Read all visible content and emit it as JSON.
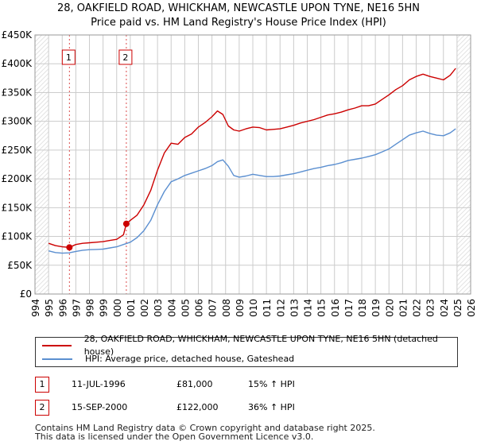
{
  "chart_data": {
    "type": "line",
    "title": "28, OAKFIELD ROAD, WHICKHAM, NEWCASTLE UPON TYNE, NE16 5HN",
    "subtitle": "Price paid vs. HM Land Registry's House Price Index (HPI)",
    "xlim": [
      1994,
      2026
    ],
    "ylim": [
      0,
      450000
    ],
    "yticks": [
      0,
      50000,
      100000,
      150000,
      200000,
      250000,
      300000,
      350000,
      400000,
      450000
    ],
    "ytick_labels": [
      "£0",
      "£50K",
      "£100K",
      "£150K",
      "£200K",
      "£250K",
      "£300K",
      "£350K",
      "£400K",
      "£450K"
    ],
    "xticks": [
      "1994",
      "1995",
      "1996",
      "1997",
      "1998",
      "1999",
      "2000",
      "2001",
      "2002",
      "2003",
      "2004",
      "2005",
      "2006",
      "2007",
      "2008",
      "2009",
      "2010",
      "2011",
      "2012",
      "2013",
      "2014",
      "2015",
      "2016",
      "2017",
      "2018",
      "2019",
      "2020",
      "2021",
      "2022",
      "2023",
      "2024",
      "2025",
      "2026"
    ],
    "grid": true,
    "hatch_before": 1995.0,
    "hatch_after": 2025.0,
    "series": [
      {
        "name": "28, OAKFIELD ROAD, WHICKHAM, NEWCASTLE UPON TYNE, NE16 5HN (detached house)",
        "color": "#cc0000",
        "x": [
          1995.0,
          1995.5,
          1996.0,
          1996.53,
          1997.0,
          1997.5,
          1998.0,
          1998.5,
          1999.0,
          1999.5,
          2000.0,
          2000.5,
          2000.71,
          2001.0,
          2001.5,
          2002.0,
          2002.5,
          2003.0,
          2003.5,
          2004.0,
          2004.5,
          2005.0,
          2005.5,
          2006.0,
          2006.5,
          2007.0,
          2007.4,
          2007.8,
          2008.2,
          2008.6,
          2009.0,
          2009.5,
          2010.0,
          2010.5,
          2011.0,
          2011.5,
          2012.0,
          2012.5,
          2013.0,
          2013.5,
          2014.0,
          2014.5,
          2015.0,
          2015.5,
          2016.0,
          2016.5,
          2017.0,
          2017.5,
          2018.0,
          2018.5,
          2019.0,
          2019.5,
          2020.0,
          2020.5,
          2021.0,
          2021.5,
          2022.0,
          2022.5,
          2023.0,
          2023.5,
          2024.0,
          2024.5,
          2024.9
        ],
        "y": [
          88000,
          84000,
          82000,
          81000,
          86000,
          88000,
          89000,
          90000,
          91000,
          93000,
          95000,
          103000,
          122000,
          128000,
          137000,
          155000,
          180000,
          215000,
          245000,
          262000,
          260000,
          272000,
          278000,
          290000,
          298000,
          308000,
          318000,
          312000,
          292000,
          285000,
          283000,
          287000,
          290000,
          289000,
          285000,
          286000,
          287000,
          290000,
          293000,
          297000,
          300000,
          303000,
          307000,
          311000,
          313000,
          316000,
          320000,
          323000,
          327000,
          327000,
          330000,
          338000,
          346000,
          355000,
          362000,
          372000,
          378000,
          382000,
          378000,
          375000,
          372000,
          380000,
          392000
        ]
      },
      {
        "name": "HPI: Average price, detached house, Gateshead",
        "color": "#5b8fd0",
        "x": [
          1995.0,
          1995.5,
          1996.0,
          1996.5,
          1997.0,
          1997.5,
          1998.0,
          1998.5,
          1999.0,
          1999.5,
          2000.0,
          2000.5,
          2001.0,
          2001.5,
          2002.0,
          2002.5,
          2003.0,
          2003.5,
          2004.0,
          2004.5,
          2005.0,
          2005.5,
          2006.0,
          2006.5,
          2007.0,
          2007.4,
          2007.8,
          2008.2,
          2008.6,
          2009.0,
          2009.5,
          2010.0,
          2010.5,
          2011.0,
          2011.5,
          2012.0,
          2012.5,
          2013.0,
          2013.5,
          2014.0,
          2014.5,
          2015.0,
          2015.5,
          2016.0,
          2016.5,
          2017.0,
          2017.5,
          2018.0,
          2018.5,
          2019.0,
          2019.5,
          2020.0,
          2020.5,
          2021.0,
          2021.5,
          2022.0,
          2022.5,
          2023.0,
          2023.5,
          2024.0,
          2024.5,
          2024.9
        ],
        "y": [
          75000,
          72000,
          71000,
          71500,
          74000,
          76000,
          77000,
          77500,
          78000,
          80000,
          82000,
          86000,
          90000,
          98000,
          110000,
          128000,
          155000,
          178000,
          195000,
          200000,
          206000,
          210000,
          214000,
          218000,
          223000,
          230000,
          233000,
          222000,
          206000,
          203000,
          205000,
          208000,
          206000,
          204000,
          204000,
          205000,
          207000,
          209000,
          212000,
          215000,
          218000,
          220000,
          223000,
          225000,
          228000,
          232000,
          234000,
          236000,
          239000,
          242000,
          247000,
          252000,
          260000,
          268000,
          276000,
          280000,
          283000,
          279000,
          276000,
          275000,
          280000,
          287000
        ]
      }
    ],
    "sales": [
      {
        "label": "1",
        "x": 1996.53,
        "y": 81000
      },
      {
        "label": "2",
        "x": 2000.71,
        "y": 122000
      }
    ]
  },
  "legend": {
    "property": "28, OAKFIELD ROAD, WHICKHAM, NEWCASTLE UPON TYNE, NE16 5HN (detached house)",
    "hpi": "HPI: Average price, detached house, Gateshead"
  },
  "sales_table": [
    {
      "num": "1",
      "date": "11-JUL-1996",
      "price": "£81,000",
      "hpi": "15% ↑ HPI"
    },
    {
      "num": "2",
      "date": "15-SEP-2000",
      "price": "£122,000",
      "hpi": "36% ↑ HPI"
    }
  ],
  "footer": {
    "line1": "Contains HM Land Registry data © Crown copyright and database right 2025.",
    "line2": "This data is licensed under the Open Government Licence v3.0."
  },
  "colors": {
    "property": "#cc0000",
    "hpi": "#5b8fd0",
    "grid": "#cccccc",
    "plot_bg": "#ffffff",
    "hatch": "#d9d9d9"
  }
}
